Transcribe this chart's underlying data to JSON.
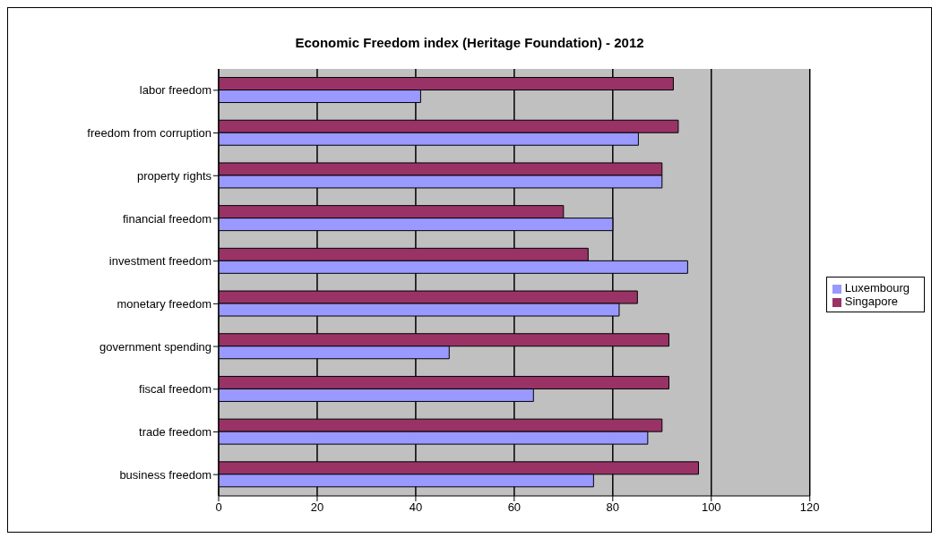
{
  "chart_data": {
    "type": "bar",
    "orientation": "horizontal",
    "title": "Economic Freedom index (Heritage Foundation) - 2012",
    "categories": [
      "labor freedom",
      "freedom from corruption",
      "property rights",
      "financial freedom",
      "investment freedom",
      "monetary freedom",
      "government spending",
      "fiscal freedom",
      "trade freedom",
      "business freedom"
    ],
    "series": [
      {
        "name": "Singapore",
        "color": "#993366",
        "values": [
          92.3,
          93.3,
          90,
          70,
          75,
          85,
          91.4,
          91.4,
          90,
          97.4
        ]
      },
      {
        "name": "Luxembourg",
        "color": "#9999ff",
        "values": [
          41,
          85.2,
          90,
          80,
          95.2,
          81.3,
          46.8,
          63.9,
          87.1,
          76.1
        ]
      }
    ],
    "xlim": [
      0,
      120
    ],
    "xticks": [
      0,
      20,
      40,
      60,
      80,
      100,
      120
    ],
    "grid": "x",
    "legend": "right"
  }
}
